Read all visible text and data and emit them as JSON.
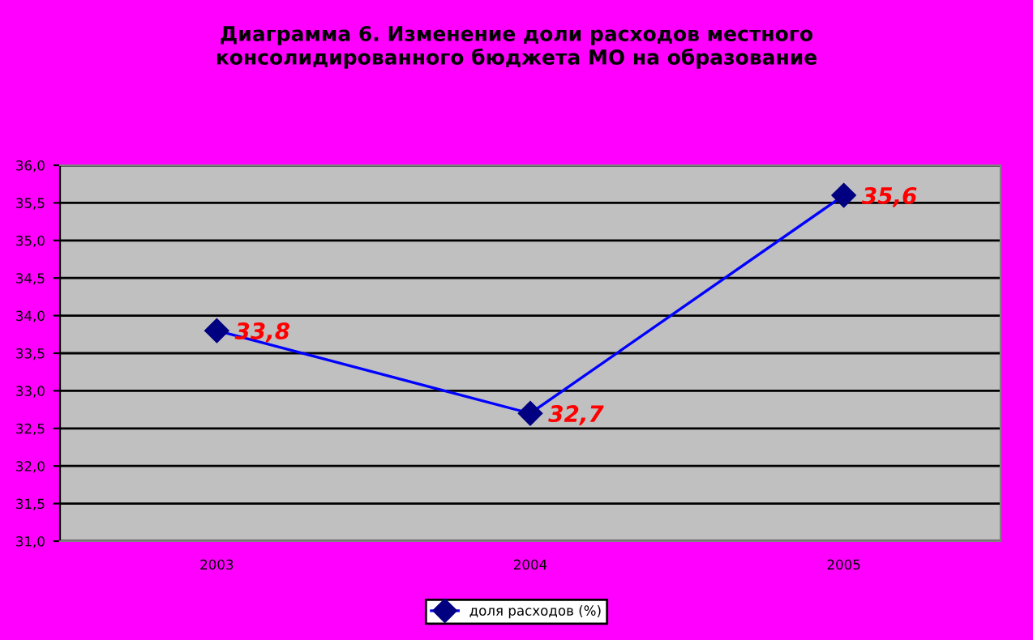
{
  "chart_data": {
    "type": "line",
    "title": "Диаграмма 6. Изменение доли расходов местного\nконсолидированного бюджета МО на образование",
    "categories": [
      "2003",
      "2004",
      "2005"
    ],
    "series": [
      {
        "name": "доля расходов (%)",
        "color": "#0000ff",
        "values": [
          33.8,
          32.7,
          35.6
        ],
        "value_labels": [
          "33,8",
          "32,7",
          "35,6"
        ]
      }
    ],
    "ylim": [
      31.0,
      36.0
    ],
    "yticks": [
      {
        "value": 31.0,
        "label": "31,0"
      },
      {
        "value": 31.5,
        "label": "31,5"
      },
      {
        "value": 32.0,
        "label": "32,0"
      },
      {
        "value": 32.5,
        "label": "32,5"
      },
      {
        "value": 33.0,
        "label": "33,0"
      },
      {
        "value": 33.5,
        "label": "33,5"
      },
      {
        "value": 34.0,
        "label": "34,0"
      },
      {
        "value": 34.5,
        "label": "34,5"
      },
      {
        "value": 35.0,
        "label": "35,0"
      },
      {
        "value": 35.5,
        "label": "35,5"
      },
      {
        "value": 36.0,
        "label": "36,0"
      }
    ],
    "grid": "y",
    "legend": "bottom",
    "marker": "diamond",
    "line_style": "solid"
  }
}
